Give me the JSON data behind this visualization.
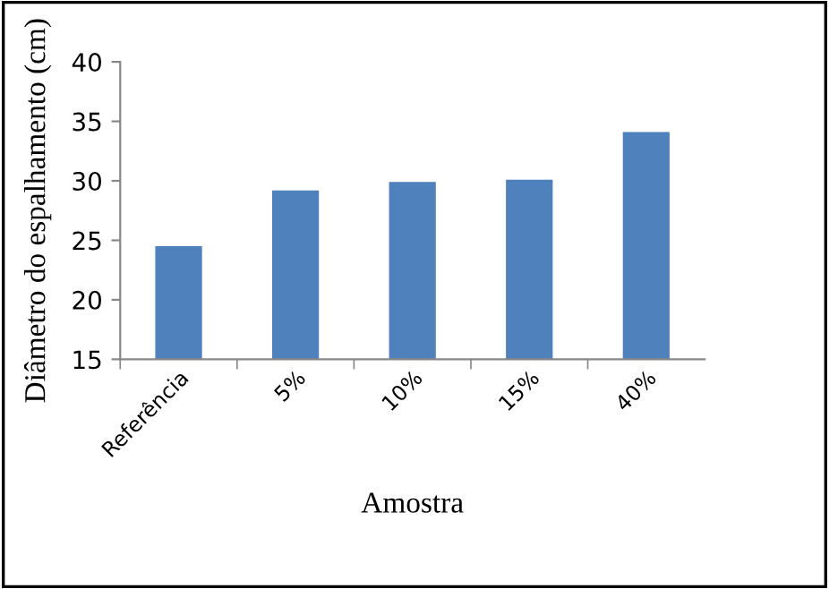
{
  "chart_data": {
    "type": "bar",
    "xlabel": "Amostra",
    "ylabel": "Diâmetro do espalhamento (cm)",
    "categories": [
      "Referência",
      "5%",
      "10%",
      "15%",
      "40%"
    ],
    "values": [
      24.5,
      29.2,
      29.9,
      30.1,
      34.1
    ],
    "color": "#4f81bd",
    "ylim": [
      15,
      40
    ],
    "yticks": [
      15,
      20,
      25,
      30,
      35,
      40
    ],
    "grid": false,
    "legend": false
  }
}
